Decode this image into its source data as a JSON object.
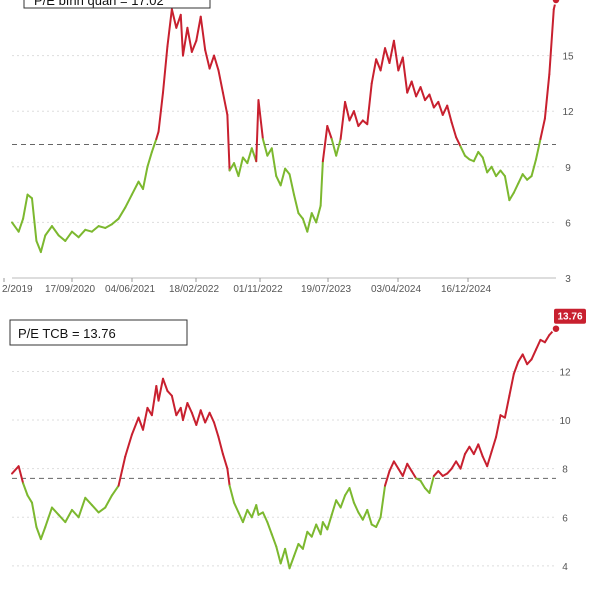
{
  "colors": {
    "above": "#c8202f",
    "below": "#7cb82f",
    "dashed": "#666666",
    "grid": "#dddddd",
    "badge": "#c8202f"
  },
  "chart_data": [
    {
      "type": "line",
      "title": "P/E bình quân = 17.02",
      "latest_label": "",
      "x_ticks": [
        "2/2019",
        "17/09/2020",
        "04/06/2021",
        "18/02/2022",
        "01/11/2022",
        "19/07/2023",
        "03/04/2024",
        "16/12/2024"
      ],
      "y_ticks": [
        3,
        6,
        9,
        12,
        15
      ],
      "ylim": [
        3,
        18
      ],
      "reference_line": 10.2,
      "points": [
        [
          0,
          6.0
        ],
        [
          3,
          5.5
        ],
        [
          5,
          6.2
        ],
        [
          7,
          7.5
        ],
        [
          9,
          7.3
        ],
        [
          11,
          5.0
        ],
        [
          13,
          4.4
        ],
        [
          15,
          5.3
        ],
        [
          18,
          5.8
        ],
        [
          21,
          5.3
        ],
        [
          24,
          5.0
        ],
        [
          27,
          5.5
        ],
        [
          30,
          5.2
        ],
        [
          33,
          5.6
        ],
        [
          36,
          5.5
        ],
        [
          39,
          5.8
        ],
        [
          42,
          5.7
        ],
        [
          45,
          5.9
        ],
        [
          48,
          6.2
        ],
        [
          51,
          6.8
        ],
        [
          54,
          7.5
        ],
        [
          57,
          8.2
        ],
        [
          59,
          7.8
        ],
        [
          61,
          9.0
        ],
        [
          63,
          9.8
        ],
        [
          65,
          10.5
        ],
        [
          66,
          10.9
        ],
        [
          68,
          13.0
        ],
        [
          70,
          15.5
        ],
        [
          72,
          17.5
        ],
        [
          74,
          16.5
        ],
        [
          76,
          17.2
        ],
        [
          77,
          15.0
        ],
        [
          79,
          16.5
        ],
        [
          81,
          15.2
        ],
        [
          83,
          15.8
        ],
        [
          85,
          17.1
        ],
        [
          87,
          15.3
        ],
        [
          89,
          14.3
        ],
        [
          91,
          15.0
        ],
        [
          93,
          14.2
        ],
        [
          95,
          13.0
        ],
        [
          97,
          11.8
        ],
        [
          98,
          8.8
        ],
        [
          100,
          9.2
        ],
        [
          102,
          8.5
        ],
        [
          104,
          9.5
        ],
        [
          106,
          9.2
        ],
        [
          108,
          10.0
        ],
        [
          110,
          9.3
        ],
        [
          111,
          12.6
        ],
        [
          113,
          10.5
        ],
        [
          115,
          9.6
        ],
        [
          117,
          10.0
        ],
        [
          119,
          8.5
        ],
        [
          121,
          8.0
        ],
        [
          123,
          8.9
        ],
        [
          125,
          8.6
        ],
        [
          127,
          7.5
        ],
        [
          129,
          6.5
        ],
        [
          131,
          6.2
        ],
        [
          133,
          5.5
        ],
        [
          135,
          6.5
        ],
        [
          137,
          6.0
        ],
        [
          139,
          6.9
        ],
        [
          140,
          9.3
        ],
        [
          142,
          11.2
        ],
        [
          144,
          10.5
        ],
        [
          146,
          9.6
        ],
        [
          148,
          10.5
        ],
        [
          150,
          12.5
        ],
        [
          152,
          11.5
        ],
        [
          154,
          12.0
        ],
        [
          156,
          11.2
        ],
        [
          158,
          11.5
        ],
        [
          160,
          11.3
        ],
        [
          162,
          13.5
        ],
        [
          164,
          14.8
        ],
        [
          166,
          14.2
        ],
        [
          168,
          15.4
        ],
        [
          170,
          14.6
        ],
        [
          172,
          15.8
        ],
        [
          174,
          14.2
        ],
        [
          176,
          14.9
        ],
        [
          178,
          13.0
        ],
        [
          180,
          13.6
        ],
        [
          182,
          12.8
        ],
        [
          184,
          13.3
        ],
        [
          186,
          12.6
        ],
        [
          188,
          12.9
        ],
        [
          190,
          12.2
        ],
        [
          192,
          12.5
        ],
        [
          194,
          11.8
        ],
        [
          196,
          12.3
        ],
        [
          198,
          11.4
        ],
        [
          200,
          10.6
        ],
        [
          202,
          10.1
        ],
        [
          204,
          9.6
        ],
        [
          206,
          9.4
        ],
        [
          208,
          9.3
        ],
        [
          210,
          9.8
        ],
        [
          212,
          9.5
        ],
        [
          214,
          8.7
        ],
        [
          216,
          9.0
        ],
        [
          218,
          8.5
        ],
        [
          220,
          8.8
        ],
        [
          222,
          8.5
        ],
        [
          224,
          7.2
        ],
        [
          226,
          7.6
        ],
        [
          228,
          8.1
        ],
        [
          230,
          8.6
        ],
        [
          232,
          8.3
        ],
        [
          234,
          8.5
        ],
        [
          236,
          9.4
        ],
        [
          238,
          10.5
        ],
        [
          240,
          11.6
        ],
        [
          242,
          14.0
        ],
        [
          244,
          17.5
        ],
        [
          245,
          18.0
        ]
      ]
    },
    {
      "type": "line",
      "title": "P/E TCB = 13.76",
      "latest_label": "13.76",
      "x_ticks": [],
      "y_ticks": [
        4,
        6,
        8,
        10,
        12
      ],
      "ylim": [
        3.5,
        14.2
      ],
      "reference_line": 7.6,
      "points": [
        [
          0,
          7.8
        ],
        [
          3,
          8.1
        ],
        [
          5,
          7.4
        ],
        [
          7,
          6.9
        ],
        [
          9,
          6.6
        ],
        [
          11,
          5.6
        ],
        [
          13,
          5.1
        ],
        [
          15,
          5.6
        ],
        [
          18,
          6.4
        ],
        [
          21,
          6.1
        ],
        [
          24,
          5.8
        ],
        [
          27,
          6.3
        ],
        [
          30,
          6.0
        ],
        [
          33,
          6.8
        ],
        [
          36,
          6.5
        ],
        [
          39,
          6.2
        ],
        [
          42,
          6.4
        ],
        [
          45,
          6.9
        ],
        [
          48,
          7.3
        ],
        [
          51,
          8.5
        ],
        [
          54,
          9.4
        ],
        [
          57,
          10.1
        ],
        [
          59,
          9.6
        ],
        [
          61,
          10.5
        ],
        [
          63,
          10.2
        ],
        [
          65,
          11.4
        ],
        [
          66,
          10.8
        ],
        [
          68,
          11.7
        ],
        [
          70,
          11.2
        ],
        [
          72,
          11.0
        ],
        [
          74,
          10.2
        ],
        [
          76,
          10.5
        ],
        [
          77,
          10.0
        ],
        [
          79,
          10.7
        ],
        [
          81,
          10.3
        ],
        [
          83,
          9.8
        ],
        [
          85,
          10.4
        ],
        [
          87,
          9.9
        ],
        [
          89,
          10.3
        ],
        [
          91,
          9.9
        ],
        [
          93,
          9.3
        ],
        [
          95,
          8.6
        ],
        [
          97,
          8.0
        ],
        [
          98,
          7.3
        ],
        [
          100,
          6.6
        ],
        [
          102,
          6.2
        ],
        [
          104,
          5.8
        ],
        [
          106,
          6.3
        ],
        [
          108,
          6.0
        ],
        [
          110,
          6.5
        ],
        [
          111,
          6.1
        ],
        [
          113,
          6.2
        ],
        [
          115,
          5.8
        ],
        [
          117,
          5.3
        ],
        [
          119,
          4.8
        ],
        [
          121,
          4.1
        ],
        [
          123,
          4.7
        ],
        [
          125,
          3.9
        ],
        [
          127,
          4.4
        ],
        [
          129,
          4.9
        ],
        [
          131,
          4.7
        ],
        [
          133,
          5.4
        ],
        [
          135,
          5.2
        ],
        [
          137,
          5.7
        ],
        [
          139,
          5.3
        ],
        [
          140,
          5.8
        ],
        [
          142,
          5.5
        ],
        [
          144,
          6.1
        ],
        [
          146,
          6.7
        ],
        [
          148,
          6.4
        ],
        [
          150,
          6.9
        ],
        [
          152,
          7.2
        ],
        [
          154,
          6.6
        ],
        [
          156,
          6.2
        ],
        [
          158,
          5.9
        ],
        [
          160,
          6.3
        ],
        [
          162,
          5.7
        ],
        [
          164,
          5.6
        ],
        [
          166,
          6.0
        ],
        [
          168,
          7.3
        ],
        [
          170,
          7.9
        ],
        [
          172,
          8.3
        ],
        [
          174,
          8.0
        ],
        [
          176,
          7.7
        ],
        [
          178,
          8.2
        ],
        [
          180,
          7.9
        ],
        [
          182,
          7.6
        ],
        [
          184,
          7.5
        ],
        [
          186,
          7.2
        ],
        [
          188,
          7.0
        ],
        [
          190,
          7.7
        ],
        [
          192,
          7.9
        ],
        [
          194,
          7.7
        ],
        [
          196,
          7.8
        ],
        [
          198,
          8.0
        ],
        [
          200,
          8.3
        ],
        [
          202,
          8.0
        ],
        [
          204,
          8.6
        ],
        [
          206,
          8.9
        ],
        [
          208,
          8.6
        ],
        [
          210,
          9.0
        ],
        [
          212,
          8.5
        ],
        [
          214,
          8.1
        ],
        [
          216,
          8.7
        ],
        [
          218,
          9.3
        ],
        [
          220,
          10.2
        ],
        [
          222,
          10.1
        ],
        [
          224,
          11.0
        ],
        [
          226,
          11.9
        ],
        [
          228,
          12.4
        ],
        [
          230,
          12.7
        ],
        [
          232,
          12.3
        ],
        [
          234,
          12.5
        ],
        [
          236,
          12.9
        ],
        [
          238,
          13.3
        ],
        [
          240,
          13.2
        ],
        [
          242,
          13.5
        ],
        [
          244,
          13.7
        ],
        [
          245,
          13.76
        ]
      ]
    }
  ]
}
